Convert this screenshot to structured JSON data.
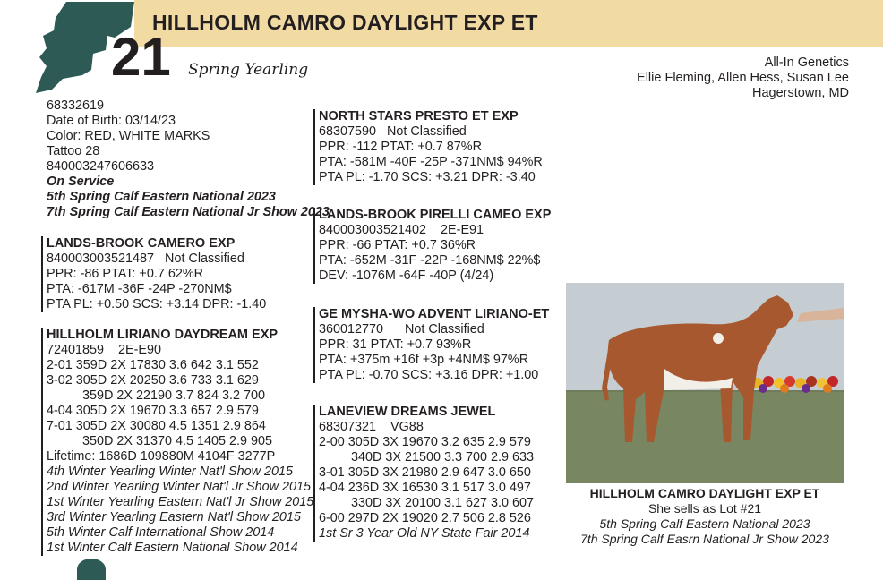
{
  "header": {
    "lot_name": "HILLHOLM CAMRO DAYLIGHT EXP ET",
    "lot_number": "21",
    "lot_class": "Spring Yearling"
  },
  "consignor": [
    "All-In Genetics",
    "Ellie Fleming, Allen Hess, Susan Lee",
    "Hagerstown, MD"
  ],
  "animal": {
    "reg": "68332619",
    "dob": "Date of Birth: 03/14/23",
    "color": "Color: RED, WHITE MARKS",
    "tattoo": "Tattoo 28",
    "rfid": "840003247606633",
    "status": "On Service",
    "honors": [
      "5th Spring Calf Eastern National 2023",
      "7th Spring Calf Eastern National Jr Show 2023"
    ]
  },
  "sire": {
    "name": "LANDS-BROOK CAMERO EXP",
    "lines": [
      "840003003521487   Not Classified",
      "PPR: -86 PTAT: +0.7 62%R",
      "PTA: -617M -36F -24P -270NM$",
      "PTA PL: +0.50 SCS: +3.14 DPR: -1.40"
    ]
  },
  "dam": {
    "name": "HILLHOLM LIRIANO DAYDREAM EXP",
    "lines": [
      "72401859    2E-E90",
      "2-01 359D 2X 17830 3.6 642 3.1 552",
      "3-02 305D 2X 20250 3.6 733 3.1 629",
      "          359D 2X 22190 3.7 824 3.2 700",
      "4-04 305D 2X 19670 3.3 657 2.9 579",
      "7-01 305D 2X 30080 4.5 1351 2.9 864",
      "          350D 2X 31370 4.5 1405 2.9 905",
      "Lifetime: 1686D 109880M 4104F 3277P"
    ],
    "honors": [
      "4th Winter Yearling Winter Nat'l Show 2015",
      "2nd Winter Yearling Winter Nat'l Jr Show 2015",
      "1st Winter Yearling Eastern Nat'l Jr Show 2015",
      "3rd Winter Yearling Eastern Nat'l Show 2015",
      "5th Winter Calf International Show 2014",
      "1st Winter Calf Eastern National Show 2014"
    ]
  },
  "pedigree_right": [
    {
      "name": "NORTH STARS PRESTO ET EXP",
      "lines": [
        "68307590   Not Classified",
        "PPR: -112 PTAT: +0.7 87%R",
        "PTA: -581M -40F -25P -371NM$ 94%R",
        "PTA PL: -1.70 SCS: +3.21 DPR: -3.40"
      ]
    },
    {
      "name": "LANDS-BROOK PIRELLI CAMEO EXP",
      "lines": [
        "840003003521402    2E-E91",
        "PPR: -66 PTAT: +0.7 36%R",
        "PTA: -652M -31F -22P -168NM$ 22%$",
        "DEV: -1076M -64F -40P (4/24)"
      ]
    },
    {
      "name": "GE MYSHA-WO ADVENT LIRIANO-ET",
      "lines": [
        "360012770      Not Classified",
        "PPR: 31 PTAT: +0.7 93%R",
        "PTA: +375m +16f +3p +4NM$ 97%R",
        "PTA PL: -0.70 SCS: +3.16 DPR: +1.00"
      ]
    }
  ],
  "granddam": {
    "name": "LANEVIEW DREAMS JEWEL",
    "lines": [
      "68307321    VG88",
      "2-00 305D 3X 19670 3.2 635 2.9 579",
      "         340D 3X 21500 3.3 700 2.9 633",
      "3-01 305D 3X 21980 2.9 647 3.0 650",
      "4-04 236D 3X 16530 3.1 517 3.0 497",
      "         330D 3X 20100 3.1 627 3.0 607",
      "6-00 297D 2X 19020 2.7 506 2.8 526"
    ],
    "honors": [
      "1st Sr 3 Year Old NY State Fair 2014"
    ]
  },
  "photo_caption": {
    "title": "HILLHOLM CAMRO DAYLIGHT EXP ET",
    "sells": "She sells as Lot #21",
    "honors": [
      "5th Spring Calf Eastern National 2023",
      "7th Spring Calf Easrn National Jr Show 2023"
    ]
  },
  "colors": {
    "banner": "#f2dba3",
    "map": "#2e5a55"
  }
}
